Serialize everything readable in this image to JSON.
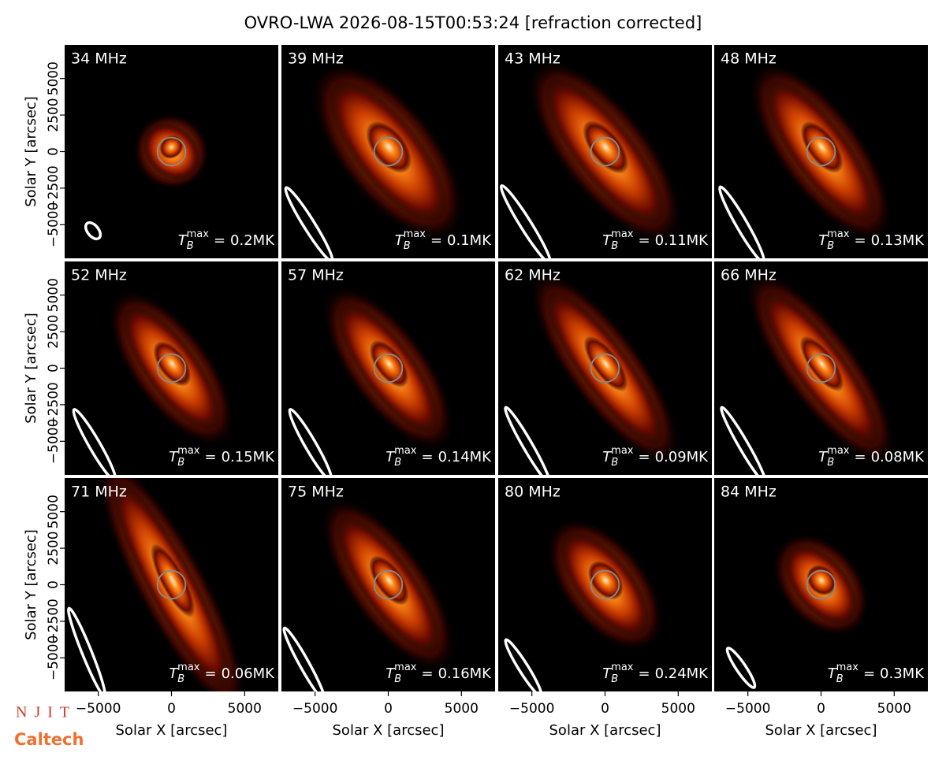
{
  "chart_data": {
    "type": "image_grid",
    "title": "OVRO-LWA 2026-08-15T00:53:24 [refraction corrected]",
    "xlabel": "Solar X [arcsec]",
    "ylabel": "Solar Y [arcsec]",
    "xlim": [
      -7300,
      7300
    ],
    "ylim": [
      -7300,
      7300
    ],
    "xticks": [
      {
        "value": -5000,
        "label": "−5000"
      },
      0,
      5000
    ],
    "yticks": [
      {
        "value": -5000,
        "label": "−5000"
      },
      {
        "value": -2500,
        "label": "−2500"
      },
      0,
      2500,
      5000
    ],
    "colormap": [
      "#000000",
      "#6a0a00",
      "#c83c00",
      "#ff8a1a",
      "#fff0d8"
    ],
    "tb_symbol": {
      "symbol": "T",
      "subscript": "B",
      "superscript": "max",
      "relation": "="
    },
    "panels": [
      {
        "frequency": "34 MHz",
        "tb_max": "0.2MK"
      },
      {
        "frequency": "39 MHz",
        "tb_max": "0.1MK"
      },
      {
        "frequency": "43 MHz",
        "tb_max": "0.11MK"
      },
      {
        "frequency": "48 MHz",
        "tb_max": "0.13MK"
      },
      {
        "frequency": "52 MHz",
        "tb_max": "0.15MK"
      },
      {
        "frequency": "57 MHz",
        "tb_max": "0.14MK"
      },
      {
        "frequency": "62 MHz",
        "tb_max": "0.09MK"
      },
      {
        "frequency": "66 MHz",
        "tb_max": "0.08MK"
      },
      {
        "frequency": "71 MHz",
        "tb_max": "0.06MK"
      },
      {
        "frequency": "75 MHz",
        "tb_max": "0.16MK"
      },
      {
        "frequency": "80 MHz",
        "tb_max": "0.24MK"
      },
      {
        "frequency": "84 MHz",
        "tb_max": "0.3MK"
      }
    ]
  },
  "logos": [
    "NJIT",
    "Caltech"
  ]
}
